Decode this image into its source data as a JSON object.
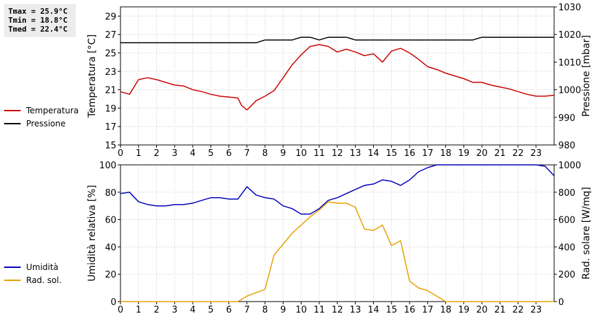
{
  "stats": {
    "tmax": "Tmax = 25.9°C",
    "tmin": "Tmin = 18.8°C",
    "tmed": "Tmed = 22.4°C"
  },
  "chart_data": [
    {
      "type": "line",
      "ylabel": "Temperatura [°C]",
      "ylabel2": "Pressione [mbar]",
      "xlim": [
        0,
        24
      ],
      "xticks": [
        0,
        1,
        2,
        3,
        4,
        5,
        6,
        7,
        8,
        9,
        10,
        11,
        12,
        13,
        14,
        15,
        16,
        17,
        18,
        19,
        20,
        21,
        22,
        23
      ],
      "ylim": [
        15,
        30
      ],
      "yticks": [
        15,
        17,
        19,
        21,
        23,
        25,
        27,
        29
      ],
      "ylim2": [
        980,
        1030
      ],
      "yticks2": [
        980,
        990,
        1000,
        1010,
        1020,
        1030
      ],
      "grid": true,
      "legend_position": "left",
      "series": [
        {
          "name": "Temperatura",
          "color": "#cc0000",
          "axis": "left",
          "points": [
            [
              0,
              20.8
            ],
            [
              0.5,
              20.5
            ],
            [
              1,
              22.1
            ],
            [
              1.5,
              22.3
            ],
            [
              2,
              22.1
            ],
            [
              2.5,
              21.8
            ],
            [
              3,
              21.5
            ],
            [
              3.5,
              21.4
            ],
            [
              4,
              21.0
            ],
            [
              4.5,
              20.8
            ],
            [
              5,
              20.5
            ],
            [
              5.5,
              20.3
            ],
            [
              6,
              20.2
            ],
            [
              6.5,
              20.1
            ],
            [
              6.7,
              19.3
            ],
            [
              7,
              18.8
            ],
            [
              7.5,
              19.8
            ],
            [
              8,
              20.3
            ],
            [
              8.5,
              20.9
            ],
            [
              9,
              22.3
            ],
            [
              9.5,
              23.7
            ],
            [
              10,
              24.8
            ],
            [
              10.5,
              25.7
            ],
            [
              11,
              25.9
            ],
            [
              11.5,
              25.7
            ],
            [
              12,
              25.1
            ],
            [
              12.5,
              25.4
            ],
            [
              13,
              25.1
            ],
            [
              13.5,
              24.7
            ],
            [
              14,
              24.9
            ],
            [
              14.5,
              24.0
            ],
            [
              15,
              25.2
            ],
            [
              15.5,
              25.5
            ],
            [
              16,
              25.0
            ],
            [
              16.5,
              24.3
            ],
            [
              17,
              23.5
            ],
            [
              17.5,
              23.2
            ],
            [
              18,
              22.8
            ],
            [
              18.5,
              22.5
            ],
            [
              19,
              22.2
            ],
            [
              19.5,
              21.8
            ],
            [
              20,
              21.8
            ],
            [
              20.5,
              21.5
            ],
            [
              21,
              21.3
            ],
            [
              21.5,
              21.1
            ],
            [
              22,
              20.8
            ],
            [
              22.5,
              20.5
            ],
            [
              23,
              20.3
            ],
            [
              23.5,
              20.3
            ],
            [
              24,
              20.4
            ]
          ]
        },
        {
          "name": "Pressione",
          "color": "#000000",
          "axis": "right",
          "points": [
            [
              0,
              1017
            ],
            [
              0.5,
              1017
            ],
            [
              7.5,
              1017
            ],
            [
              8,
              1018
            ],
            [
              9.5,
              1018
            ],
            [
              10,
              1019
            ],
            [
              10.5,
              1019
            ],
            [
              11,
              1018
            ],
            [
              11.5,
              1019
            ],
            [
              12.5,
              1019
            ],
            [
              13,
              1018
            ],
            [
              19.5,
              1018
            ],
            [
              20,
              1019
            ],
            [
              24,
              1019
            ]
          ]
        }
      ]
    },
    {
      "type": "line",
      "ylabel": "Umidità relativa [%]",
      "ylabel2": "Rad. solare [W/mq]",
      "xlim": [
        0,
        24
      ],
      "xticks": [
        0,
        1,
        2,
        3,
        4,
        5,
        6,
        7,
        8,
        9,
        10,
        11,
        12,
        13,
        14,
        15,
        16,
        17,
        18,
        19,
        20,
        21,
        22,
        23
      ],
      "ylim": [
        0,
        100
      ],
      "yticks": [
        0,
        20,
        40,
        60,
        80,
        100
      ],
      "ylim2": [
        0,
        1000
      ],
      "yticks2": [
        0,
        200,
        400,
        600,
        800,
        1000
      ],
      "grid": true,
      "legend_position": "left",
      "series": [
        {
          "name": "Umidità",
          "color": "#0000bb",
          "axis": "left",
          "points": [
            [
              0,
              79
            ],
            [
              0.5,
              80
            ],
            [
              1,
              73
            ],
            [
              1.5,
              71
            ],
            [
              2,
              70
            ],
            [
              2.5,
              70
            ],
            [
              3,
              71
            ],
            [
              3.5,
              71
            ],
            [
              4,
              72
            ],
            [
              4.5,
              74
            ],
            [
              5,
              76
            ],
            [
              5.5,
              76
            ],
            [
              6,
              75
            ],
            [
              6.5,
              75
            ],
            [
              7,
              84
            ],
            [
              7.5,
              78
            ],
            [
              8,
              76
            ],
            [
              8.5,
              75
            ],
            [
              9,
              70
            ],
            [
              9.5,
              68
            ],
            [
              10,
              64
            ],
            [
              10.5,
              64
            ],
            [
              11,
              68
            ],
            [
              11.5,
              74
            ],
            [
              12,
              76
            ],
            [
              12.5,
              79
            ],
            [
              13,
              82
            ],
            [
              13.5,
              85
            ],
            [
              14,
              86
            ],
            [
              14.5,
              89
            ],
            [
              15,
              88
            ],
            [
              15.5,
              85
            ],
            [
              16,
              89
            ],
            [
              16.5,
              95
            ],
            [
              17,
              98
            ],
            [
              17.5,
              100
            ],
            [
              23,
              100
            ],
            [
              23.5,
              99
            ],
            [
              24,
              92
            ]
          ]
        },
        {
          "name": "Rad. sol.",
          "color": "#e8a000",
          "axis": "right",
          "points": [
            [
              0,
              0
            ],
            [
              6.5,
              0
            ],
            [
              7,
              40
            ],
            [
              7.5,
              65
            ],
            [
              8,
              90
            ],
            [
              8.5,
              340
            ],
            [
              9,
              420
            ],
            [
              9.5,
              500
            ],
            [
              10,
              560
            ],
            [
              10.5,
              620
            ],
            [
              11,
              670
            ],
            [
              11.5,
              730
            ],
            [
              12,
              720
            ],
            [
              12.5,
              720
            ],
            [
              13,
              690
            ],
            [
              13.5,
              530
            ],
            [
              14,
              520
            ],
            [
              14.5,
              560
            ],
            [
              15,
              410
            ],
            [
              15.5,
              445
            ],
            [
              16,
              150
            ],
            [
              16.5,
              100
            ],
            [
              17,
              80
            ],
            [
              17.5,
              40
            ],
            [
              18,
              0
            ],
            [
              24,
              0
            ]
          ]
        }
      ]
    }
  ]
}
